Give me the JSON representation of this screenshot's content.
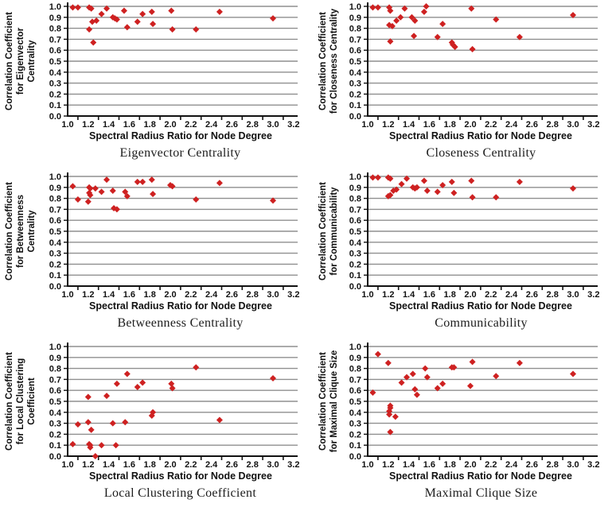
{
  "page": {
    "background": "#ffffff"
  },
  "styles": {
    "marker_color": "#ce2121",
    "grid_color": "#8f8f8f",
    "axis_color": "#111111",
    "text_color": "#111111"
  },
  "chart_data": [
    {
      "type": "scatter",
      "caption": "Eigenvector Centrality",
      "ylabel_lines": [
        "Correlation Coefficient",
        "for Eigenvector",
        "Centrality"
      ],
      "xlabel": "Spectral Radius Ratio for Node Degree",
      "xlim": [
        1.0,
        3.2
      ],
      "ylim": [
        0.0,
        1.0
      ],
      "x_tick_step": 0.2,
      "y_tick_step": 0.1,
      "grid": "horizontal",
      "legend": "none",
      "points": [
        [
          1.05,
          0.99
        ],
        [
          1.1,
          0.99
        ],
        [
          1.21,
          0.99
        ],
        [
          1.23,
          0.98
        ],
        [
          1.21,
          0.79
        ],
        [
          1.24,
          0.86
        ],
        [
          1.28,
          0.87
        ],
        [
          1.25,
          0.67
        ],
        [
          1.33,
          0.93
        ],
        [
          1.38,
          0.98
        ],
        [
          1.44,
          0.9
        ],
        [
          1.46,
          0.89
        ],
        [
          1.48,
          0.88
        ],
        [
          1.55,
          0.96
        ],
        [
          1.58,
          0.81
        ],
        [
          1.68,
          0.86
        ],
        [
          1.73,
          0.93
        ],
        [
          1.82,
          0.95
        ],
        [
          1.83,
          0.84
        ],
        [
          2.01,
          0.96
        ],
        [
          2.02,
          0.79
        ],
        [
          2.25,
          0.79
        ],
        [
          2.48,
          0.95
        ],
        [
          3.0,
          0.89
        ]
      ]
    },
    {
      "type": "scatter",
      "caption": "Closeness Centrality",
      "ylabel_lines": [
        "Correlation Coefficient",
        "for Closeness Centrality"
      ],
      "xlabel": "Spectral Radius Ratio for Node Degree",
      "xlim": [
        1.0,
        3.2
      ],
      "ylim": [
        0.0,
        1.0
      ],
      "x_tick_step": 0.2,
      "y_tick_step": 0.1,
      "grid": "horizontal",
      "legend": "none",
      "points": [
        [
          1.05,
          0.99
        ],
        [
          1.1,
          0.99
        ],
        [
          1.21,
          0.99
        ],
        [
          1.22,
          0.96
        ],
        [
          1.21,
          0.83
        ],
        [
          1.24,
          0.82
        ],
        [
          1.22,
          0.68
        ],
        [
          1.28,
          0.87
        ],
        [
          1.32,
          0.9
        ],
        [
          1.36,
          0.98
        ],
        [
          1.43,
          0.9
        ],
        [
          1.46,
          0.87
        ],
        [
          1.45,
          0.73
        ],
        [
          1.55,
          0.95
        ],
        [
          1.57,
          1.0
        ],
        [
          1.68,
          0.72
        ],
        [
          1.73,
          0.84
        ],
        [
          1.82,
          0.67
        ],
        [
          1.83,
          0.65
        ],
        [
          1.85,
          0.63
        ],
        [
          2.01,
          0.98
        ],
        [
          2.02,
          0.61
        ],
        [
          2.25,
          0.88
        ],
        [
          2.48,
          0.72
        ],
        [
          3.0,
          0.92
        ]
      ]
    },
    {
      "type": "scatter",
      "caption": "Betweenness Centrality",
      "ylabel_lines": [
        "Correlation Coefficient",
        "for Betweenness",
        "Centrality"
      ],
      "xlabel": "Spectral Radius Ratio for Node Degree",
      "xlim": [
        1.0,
        3.2
      ],
      "ylim": [
        0.0,
        1.0
      ],
      "x_tick_step": 0.2,
      "y_tick_step": 0.1,
      "grid": "horizontal",
      "legend": "none",
      "points": [
        [
          1.05,
          0.91
        ],
        [
          1.1,
          0.79
        ],
        [
          1.2,
          0.77
        ],
        [
          1.21,
          0.9
        ],
        [
          1.22,
          0.89
        ],
        [
          1.21,
          0.85
        ],
        [
          1.22,
          0.83
        ],
        [
          1.27,
          0.89
        ],
        [
          1.33,
          0.86
        ],
        [
          1.38,
          0.97
        ],
        [
          1.44,
          0.87
        ],
        [
          1.45,
          0.71
        ],
        [
          1.48,
          0.7
        ],
        [
          1.56,
          0.86
        ],
        [
          1.58,
          0.82
        ],
        [
          1.68,
          0.95
        ],
        [
          1.73,
          0.95
        ],
        [
          1.82,
          0.97
        ],
        [
          1.83,
          0.84
        ],
        [
          2.0,
          0.92
        ],
        [
          2.02,
          0.91
        ],
        [
          2.25,
          0.79
        ],
        [
          2.48,
          0.94
        ],
        [
          3.0,
          0.78
        ]
      ]
    },
    {
      "type": "scatter",
      "caption": "Communicability",
      "ylabel_lines": [
        "Correlation Coefficient",
        "for Communicability"
      ],
      "xlabel": "Spectral Radius Ratio for Node Degree",
      "xlim": [
        1.0,
        3.2
      ],
      "ylim": [
        0.0,
        1.0
      ],
      "x_tick_step": 0.2,
      "y_tick_step": 0.1,
      "grid": "horizontal",
      "legend": "none",
      "points": [
        [
          1.05,
          0.99
        ],
        [
          1.1,
          0.99
        ],
        [
          1.2,
          0.99
        ],
        [
          1.22,
          0.98
        ],
        [
          1.2,
          0.82
        ],
        [
          1.22,
          0.83
        ],
        [
          1.25,
          0.87
        ],
        [
          1.28,
          0.88
        ],
        [
          1.33,
          0.93
        ],
        [
          1.38,
          0.98
        ],
        [
          1.44,
          0.9
        ],
        [
          1.46,
          0.89
        ],
        [
          1.48,
          0.9
        ],
        [
          1.55,
          0.96
        ],
        [
          1.58,
          0.87
        ],
        [
          1.68,
          0.86
        ],
        [
          1.73,
          0.92
        ],
        [
          1.82,
          0.95
        ],
        [
          1.84,
          0.85
        ],
        [
          2.01,
          0.96
        ],
        [
          2.02,
          0.81
        ],
        [
          2.25,
          0.81
        ],
        [
          2.48,
          0.95
        ],
        [
          3.0,
          0.89
        ]
      ]
    },
    {
      "type": "scatter",
      "caption": "Local Clustering Coefficient",
      "ylabel_lines": [
        "Correlation Coefficient",
        "for Local Clustering",
        "Coefficient"
      ],
      "xlabel": "Spectral Radius Ratio for Node Degree",
      "xlim": [
        1.0,
        3.2
      ],
      "ylim": [
        0.0,
        1.0
      ],
      "x_tick_step": 0.2,
      "y_tick_step": 0.1,
      "grid": "horizontal",
      "legend": "none",
      "points": [
        [
          1.05,
          0.11
        ],
        [
          1.1,
          0.29
        ],
        [
          1.2,
          0.54
        ],
        [
          1.2,
          0.31
        ],
        [
          1.21,
          0.11
        ],
        [
          1.22,
          0.1
        ],
        [
          1.22,
          0.08
        ],
        [
          1.23,
          0.24
        ],
        [
          1.27,
          0.0
        ],
        [
          1.33,
          0.1
        ],
        [
          1.38,
          0.55
        ],
        [
          1.44,
          0.3
        ],
        [
          1.47,
          0.1
        ],
        [
          1.48,
          0.66
        ],
        [
          1.56,
          0.31
        ],
        [
          1.58,
          0.75
        ],
        [
          1.68,
          0.63
        ],
        [
          1.73,
          0.67
        ],
        [
          1.82,
          0.37
        ],
        [
          1.83,
          0.4
        ],
        [
          2.01,
          0.66
        ],
        [
          2.02,
          0.62
        ],
        [
          2.25,
          0.81
        ],
        [
          2.48,
          0.33
        ],
        [
          3.0,
          0.71
        ]
      ]
    },
    {
      "type": "scatter",
      "caption": "Maximal Clique Size",
      "ylabel_lines": [
        "Correlation Coefficient",
        "for Maximal Clique Size"
      ],
      "xlabel": "Spectral Radius Ratio for Node Degree",
      "xlim": [
        1.0,
        3.2
      ],
      "ylim": [
        0.0,
        1.0
      ],
      "x_tick_step": 0.2,
      "y_tick_step": 0.1,
      "grid": "horizontal",
      "legend": "none",
      "points": [
        [
          1.05,
          0.58
        ],
        [
          1.1,
          0.93
        ],
        [
          1.2,
          0.85
        ],
        [
          1.21,
          0.41
        ],
        [
          1.21,
          0.38
        ],
        [
          1.22,
          0.46
        ],
        [
          1.22,
          0.44
        ],
        [
          1.22,
          0.22
        ],
        [
          1.27,
          0.36
        ],
        [
          1.33,
          0.67
        ],
        [
          1.38,
          0.72
        ],
        [
          1.44,
          0.75
        ],
        [
          1.46,
          0.61
        ],
        [
          1.48,
          0.56
        ],
        [
          1.56,
          0.8
        ],
        [
          1.58,
          0.72
        ],
        [
          1.68,
          0.62
        ],
        [
          1.73,
          0.66
        ],
        [
          1.82,
          0.81
        ],
        [
          1.84,
          0.81
        ],
        [
          2.0,
          0.64
        ],
        [
          2.02,
          0.86
        ],
        [
          2.25,
          0.73
        ],
        [
          2.48,
          0.85
        ],
        [
          3.0,
          0.75
        ]
      ]
    }
  ]
}
